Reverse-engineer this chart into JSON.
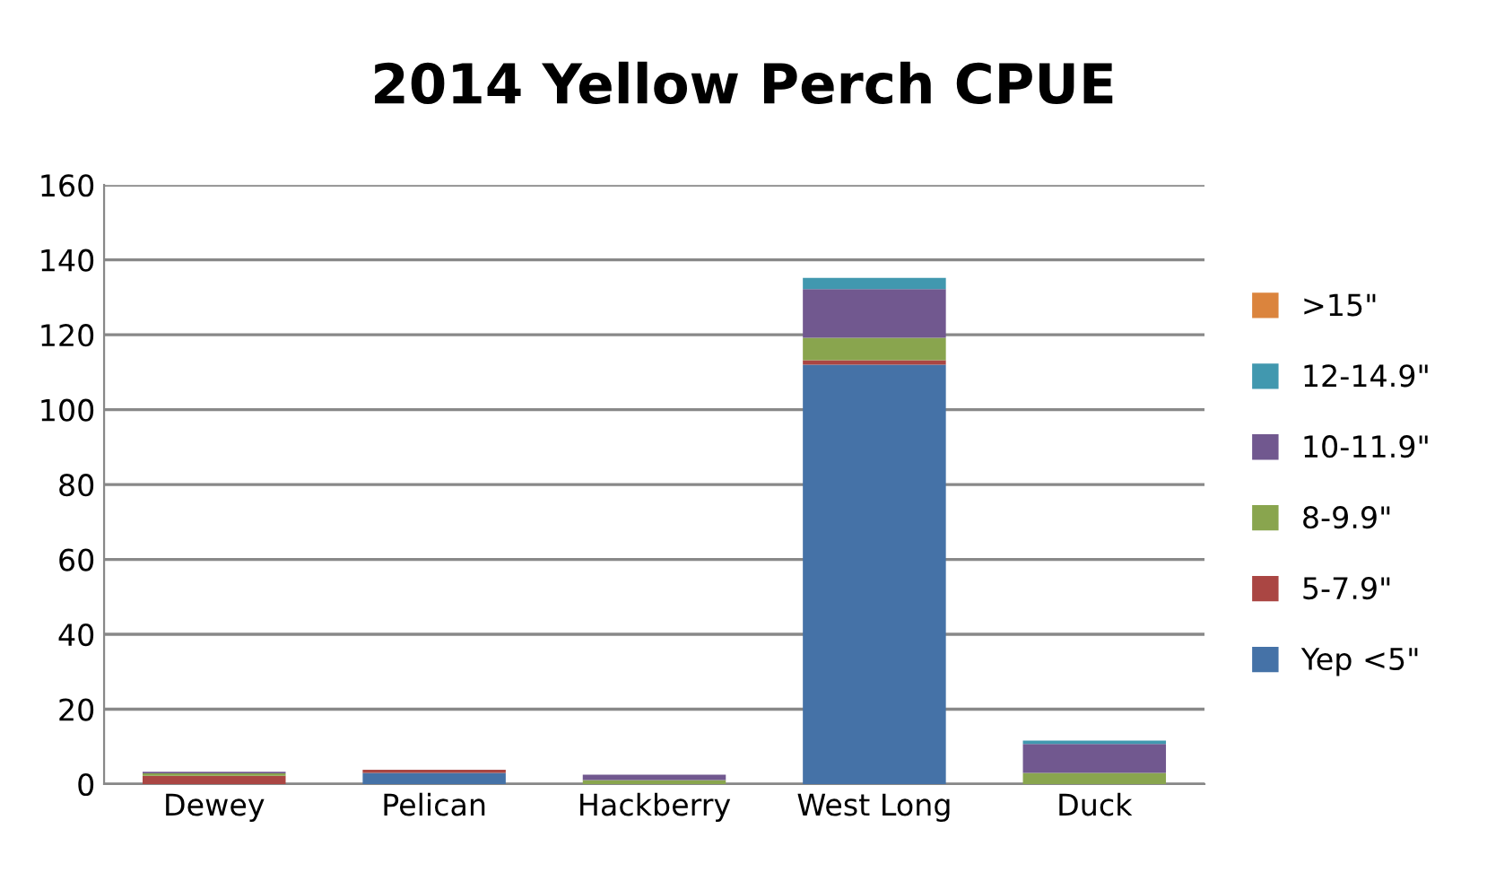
{
  "chart_data": {
    "type": "bar",
    "title": "2014 Yellow Perch CPUE",
    "stacked": true,
    "categories": [
      "Dewey",
      "Pelican",
      "Hackberry",
      "West Long",
      "Duck"
    ],
    "series": [
      {
        "name": "Yep <5\"",
        "color": "#4572a7",
        "values": [
          0,
          3.0,
          0,
          112,
          0
        ]
      },
      {
        "name": "5-7.9\"",
        "color": "#aa4643",
        "values": [
          2.2,
          0.8,
          0,
          1.2,
          0
        ]
      },
      {
        "name": "8-9.9\"",
        "color": "#89a54e",
        "values": [
          0.7,
          0,
          1.1,
          6,
          3
        ]
      },
      {
        "name": "10-11.9\"",
        "color": "#71588f",
        "values": [
          0.4,
          0,
          1.4,
          13,
          7.7
        ]
      },
      {
        "name": "12-14.9\"",
        "color": "#4198af",
        "values": [
          0,
          0,
          0,
          3,
          0.9
        ]
      },
      {
        "name": ">15\"",
        "color": "#db843d",
        "values": [
          0,
          0,
          0,
          0,
          0
        ]
      }
    ],
    "ylim": [
      0,
      160
    ],
    "yticks": [
      0,
      20,
      40,
      60,
      80,
      100,
      120,
      140,
      160
    ],
    "grid": "y",
    "legend": "right"
  }
}
